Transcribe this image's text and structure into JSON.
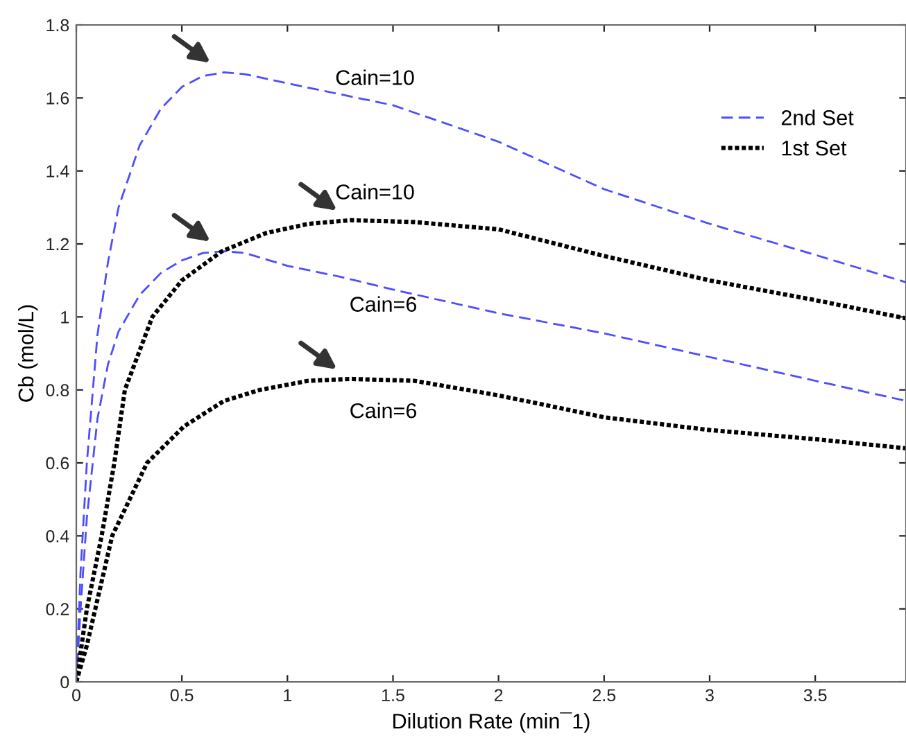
{
  "chart_data": {
    "type": "line",
    "xlabel": "Dilution Rate (min¯1)",
    "ylabel": "Cb (mol/L)",
    "xlim": [
      0,
      3.93
    ],
    "ylim": [
      0,
      1.8
    ],
    "xticks": [
      0,
      0.5,
      1,
      1.5,
      2,
      2.5,
      3,
      3.5
    ],
    "yticks": [
      0,
      0.2,
      0.4,
      0.6,
      0.8,
      1,
      1.2,
      1.4,
      1.6,
      1.8
    ],
    "grid": false,
    "legend": "top right",
    "marker": "none",
    "series": [
      {
        "name": "2nd Set",
        "color": "#4d4dff",
        "line_style": "dashed",
        "x": [
          0,
          0.02,
          0.05,
          0.1,
          0.15,
          0.2,
          0.3,
          0.4,
          0.5,
          0.6,
          0.7,
          0.8,
          1.0,
          1.25,
          1.5,
          2,
          2.5,
          3,
          3.5,
          3.93
        ],
        "values": [
          0,
          0.3,
          0.6,
          0.95,
          1.15,
          1.3,
          1.47,
          1.57,
          1.63,
          1.66,
          1.67,
          1.665,
          1.64,
          1.61,
          1.58,
          1.48,
          1.35,
          1.255,
          1.17,
          1.095
        ]
      },
      {
        "color": "#4d4dff",
        "line_style": "dashed",
        "x": [
          0,
          0.02,
          0.05,
          0.1,
          0.15,
          0.2,
          0.3,
          0.4,
          0.5,
          0.6,
          0.7,
          0.8,
          1.0,
          1.25,
          1.5,
          2,
          2.5,
          3,
          3.5,
          3.93
        ],
        "values": [
          0,
          0.2,
          0.45,
          0.72,
          0.87,
          0.96,
          1.06,
          1.12,
          1.155,
          1.175,
          1.18,
          1.175,
          1.14,
          1.11,
          1.075,
          1.01,
          0.955,
          0.89,
          0.825,
          0.77
        ]
      },
      {
        "name": "1st Set",
        "color": "#000000",
        "line_style": "dotted",
        "x": [
          0,
          0.05,
          0.12,
          0.18,
          0.23,
          0.36,
          0.5,
          0.69,
          0.9,
          1.1,
          1.3,
          1.6,
          2,
          2.5,
          3,
          3.5,
          3.93
        ],
        "values": [
          0,
          0.2,
          0.4,
          0.6,
          0.8,
          1.0,
          1.1,
          1.18,
          1.23,
          1.255,
          1.265,
          1.26,
          1.24,
          1.167,
          1.1,
          1.046,
          0.996
        ]
      },
      {
        "color": "#000000",
        "line_style": "dotted",
        "x": [
          0,
          0.05,
          0.09,
          0.17,
          0.335,
          0.51,
          0.7,
          0.87,
          1.1,
          1.3,
          1.6,
          2,
          2.5,
          3,
          3.5,
          3.93
        ],
        "values": [
          0,
          0.1,
          0.2,
          0.4,
          0.6,
          0.7,
          0.77,
          0.8,
          0.825,
          0.83,
          0.825,
          0.785,
          0.725,
          0.69,
          0.665,
          0.64
        ]
      }
    ],
    "annotations": [
      "Cain=10",
      "Cain=10",
      "Cain=6",
      "Cain=6"
    ]
  }
}
